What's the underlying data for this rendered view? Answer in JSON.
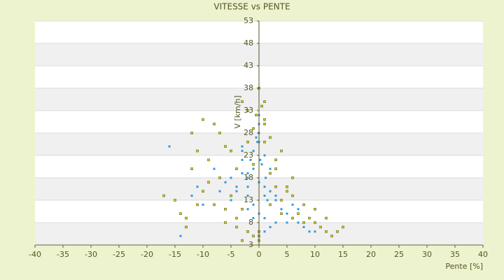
{
  "chart_data": {
    "type": "scatter",
    "title": "VITESSE vs PENTE",
    "x_label": "Pente [%]",
    "y_label": "V [km/h]",
    "xlim": [
      -40,
      40
    ],
    "xticks": [
      -40,
      -35,
      -30,
      -25,
      -20,
      -15,
      -10,
      -5,
      0,
      5,
      10,
      15,
      20,
      25,
      30,
      35,
      40
    ],
    "ylim": [
      3,
      53
    ],
    "yticks": [
      3,
      8,
      13,
      18,
      23,
      28,
      33,
      38,
      43,
      48,
      53
    ],
    "grid": true,
    "series": [
      {
        "color": "#3399dd",
        "x": [
          -2,
          -1,
          0,
          1,
          2,
          -3,
          3,
          -1,
          0,
          1,
          -2,
          2,
          0,
          -4,
          4,
          -1,
          1,
          0,
          -5,
          5,
          -3,
          3,
          -2,
          2,
          6,
          -6,
          7,
          -7,
          8,
          9,
          -8,
          10,
          -10,
          0,
          1,
          -1,
          2,
          -2,
          3,
          -3,
          0,
          -0.5,
          0.5,
          1.5,
          -1.5,
          4,
          -4,
          5,
          -5,
          11,
          12,
          -12,
          -14,
          -16,
          0,
          1,
          2,
          -1,
          -2,
          3,
          0,
          -3,
          6,
          7,
          8,
          -9,
          -11,
          0.2,
          -0.3,
          1.2
        ],
        "values": [
          18,
          20,
          17,
          16,
          15,
          22,
          13,
          24,
          26,
          14,
          19,
          12,
          10,
          16,
          11,
          21,
          9,
          28,
          18,
          10,
          25,
          8,
          14,
          7,
          9,
          17,
          8,
          15,
          7,
          6,
          20,
          6,
          12,
          5,
          23,
          12,
          19,
          11,
          16,
          24,
          30,
          27,
          21,
          13,
          22,
          10,
          15,
          8,
          13,
          7,
          6,
          14,
          5,
          25,
          4,
          6,
          20,
          9,
          16,
          14,
          32,
          19,
          12,
          11,
          8,
          17,
          16,
          22,
          26,
          18
        ]
      },
      {
        "color": "#cccc33",
        "x": [
          -10,
          -8,
          -6,
          -4,
          -2,
          0,
          2,
          4,
          6,
          8,
          -12,
          -9,
          -7,
          -5,
          -3,
          -1,
          1,
          3,
          5,
          7,
          9,
          10,
          11,
          12,
          13,
          14,
          15,
          -11,
          -13,
          -15,
          -17,
          -14,
          -12,
          -10,
          -8,
          -6,
          -4,
          -2,
          0,
          2,
          4,
          6,
          8,
          -3,
          -1,
          1,
          3,
          -5,
          5,
          -7,
          0.5,
          -0.5,
          1,
          -1,
          2,
          -2,
          3,
          -3,
          0,
          1,
          -11,
          -9,
          -6,
          -4,
          4,
          6,
          10,
          12,
          -13,
          0
        ],
        "values": [
          31,
          30,
          25,
          20,
          33,
          38,
          27,
          24,
          18,
          12,
          28,
          22,
          18,
          14,
          35,
          29,
          31,
          20,
          15,
          10,
          9,
          8,
          7,
          6,
          5,
          6,
          7,
          12,
          9,
          13,
          14,
          10,
          20,
          15,
          12,
          8,
          7,
          6,
          5,
          12,
          10,
          9,
          8,
          4,
          5,
          26,
          22,
          24,
          16,
          28,
          34,
          32,
          30,
          21,
          19,
          26,
          16,
          11,
          6,
          35,
          24,
          17,
          11,
          9,
          13,
          14,
          11,
          9,
          7,
          4
        ]
      }
    ]
  }
}
